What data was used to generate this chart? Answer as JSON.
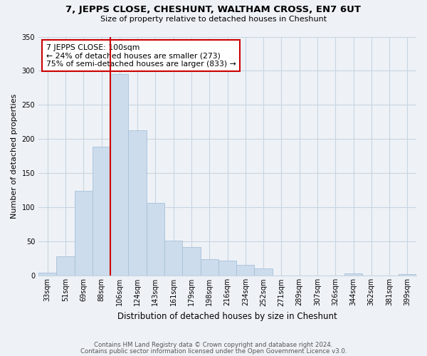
{
  "title": "7, JEPPS CLOSE, CHESHUNT, WALTHAM CROSS, EN7 6UT",
  "subtitle": "Size of property relative to detached houses in Cheshunt",
  "xlabel": "Distribution of detached houses by size in Cheshunt",
  "ylabel": "Number of detached properties",
  "bar_labels": [
    "33sqm",
    "51sqm",
    "69sqm",
    "88sqm",
    "106sqm",
    "124sqm",
    "143sqm",
    "161sqm",
    "179sqm",
    "198sqm",
    "216sqm",
    "234sqm",
    "252sqm",
    "271sqm",
    "289sqm",
    "307sqm",
    "326sqm",
    "344sqm",
    "362sqm",
    "381sqm",
    "399sqm"
  ],
  "bar_heights": [
    5,
    29,
    124,
    189,
    295,
    213,
    107,
    51,
    42,
    24,
    22,
    16,
    11,
    0,
    0,
    0,
    0,
    4,
    0,
    0,
    2
  ],
  "bar_color": "#ccdcec",
  "bar_edge_color": "#a8c0d8",
  "vline_color": "#cc0000",
  "annotation_text": "7 JEPPS CLOSE: 100sqm\n← 24% of detached houses are smaller (273)\n75% of semi-detached houses are larger (833) →",
  "annotation_box_facecolor": "#ffffff",
  "annotation_box_edgecolor": "#cc0000",
  "ylim": [
    0,
    350
  ],
  "yticks": [
    0,
    50,
    100,
    150,
    200,
    250,
    300,
    350
  ],
  "footnote1": "Contains HM Land Registry data © Crown copyright and database right 2024.",
  "footnote2": "Contains public sector information licensed under the Open Government Licence v3.0.",
  "background_color": "#eef2f7",
  "plot_background_color": "#eef2f7",
  "grid_color": "#c8d4e0",
  "title_fontsize": 9.5,
  "subtitle_fontsize": 8,
  "ylabel_fontsize": 8,
  "xlabel_fontsize": 8.5,
  "tick_fontsize": 7,
  "annotation_fontsize": 7.8,
  "footnote_fontsize": 6.2
}
